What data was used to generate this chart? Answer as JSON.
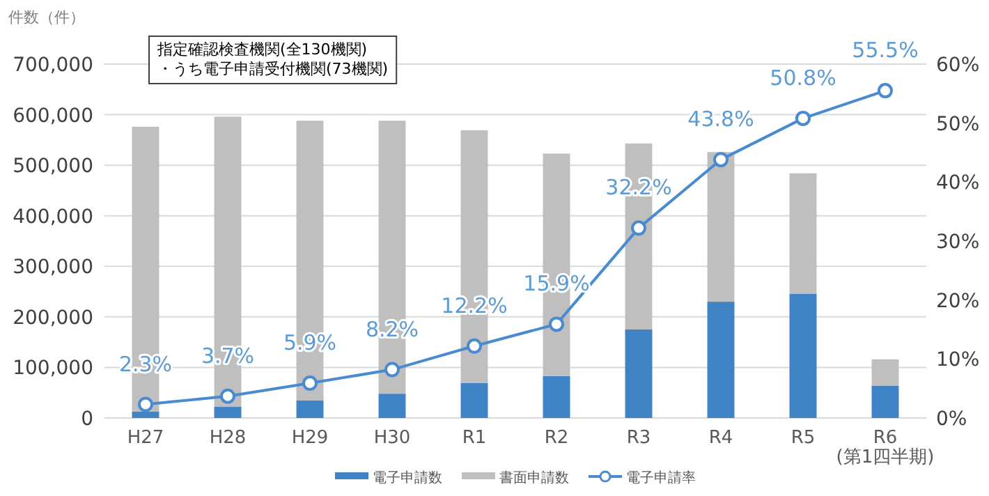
{
  "chart_data": {
    "type": "bar",
    "stacked": true,
    "ylabel": "件数（件）",
    "annotations": [
      "指定確認検査機関(全130機関)",
      "・うち電子申請受付機関(73機関)"
    ],
    "categories": [
      "H27",
      "H28",
      "H29",
      "H30",
      "R1",
      "R2",
      "R3",
      "R4",
      "R5",
      "R6\n(第1四半期)"
    ],
    "series": [
      {
        "name": "電子申請数",
        "color": "#3f83c5",
        "values": [
          13000,
          22000,
          35000,
          48000,
          69000,
          83000,
          175000,
          230000,
          246000,
          64000
        ]
      },
      {
        "name": "書面申請数",
        "color": "#bfbfbf",
        "values": [
          563000,
          574000,
          553000,
          540000,
          500000,
          440000,
          368000,
          296000,
          238000,
          52000
        ]
      },
      {
        "name": "電子申請率",
        "type": "line",
        "axis": "y2",
        "color": "#4a8ad0",
        "values": [
          2.3,
          3.7,
          5.9,
          8.2,
          12.2,
          15.9,
          32.2,
          43.8,
          50.8,
          55.5
        ],
        "value_labels": [
          "2.3%",
          "3.7%",
          "5.9%",
          "8.2%",
          "12.2%",
          "15.9%",
          "32.2%",
          "43.8%",
          "50.8%",
          "55.5%"
        ]
      }
    ],
    "ylim": [
      0,
      700000
    ],
    "yticks": [
      {
        "value": 0,
        "label": "0"
      },
      {
        "value": 100000,
        "label": "100,000"
      },
      {
        "value": 200000,
        "label": "200,000"
      },
      {
        "value": 300000,
        "label": "300,000"
      },
      {
        "value": 400000,
        "label": "400,000"
      },
      {
        "value": 500000,
        "label": "500,000"
      },
      {
        "value": 600000,
        "label": "600,000"
      },
      {
        "value": 700000,
        "label": "700,000"
      }
    ],
    "y2lim": [
      0,
      60
    ],
    "y2ticks": [
      {
        "value": 0,
        "label": "0%"
      },
      {
        "value": 10,
        "label": "10%"
      },
      {
        "value": 20,
        "label": "20%"
      },
      {
        "value": 30,
        "label": "30%"
      },
      {
        "value": 40,
        "label": "40%"
      },
      {
        "value": 50,
        "label": "50%"
      },
      {
        "value": 60,
        "label": "60%"
      }
    ],
    "grid": "y",
    "legend": "bottom",
    "marker": "circle"
  }
}
